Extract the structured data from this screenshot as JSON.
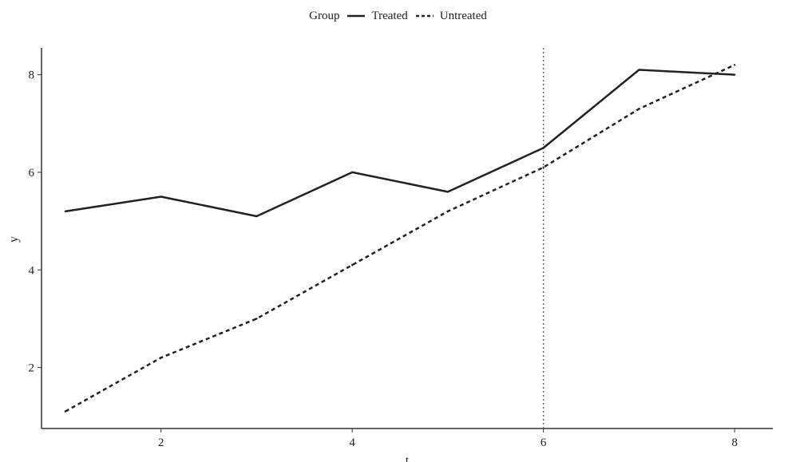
{
  "chart_data": {
    "type": "line",
    "title": "",
    "xlabel": "t",
    "ylabel": "y",
    "xlim": [
      0.75,
      8.4
    ],
    "ylim": [
      0.75,
      8.55
    ],
    "xticks": [
      2,
      4,
      6,
      8
    ],
    "yticks": [
      2,
      4,
      6,
      8
    ],
    "grid": false,
    "legend": {
      "title": "Group",
      "position": "top"
    },
    "vline": {
      "x": 6,
      "style": "dotted"
    },
    "x": [
      1,
      2,
      3,
      4,
      5,
      6,
      7,
      8
    ],
    "series": [
      {
        "name": "Treated",
        "line": "solid",
        "color": "#222222",
        "values": [
          5.2,
          5.5,
          5.1,
          6.0,
          5.6,
          6.5,
          8.1,
          8.0
        ]
      },
      {
        "name": "Untreated",
        "line": "dashed",
        "color": "#222222",
        "values": [
          1.1,
          2.2,
          3.0,
          4.1,
          5.2,
          6.1,
          7.3,
          8.2
        ]
      }
    ]
  }
}
